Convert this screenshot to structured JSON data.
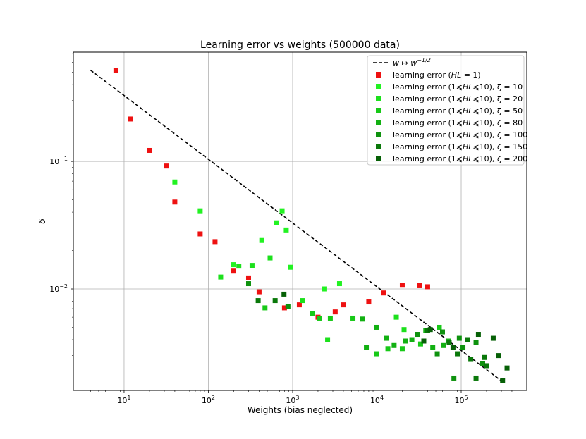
{
  "chart_data": {
    "type": "scatter",
    "title": "Learning error vs weights (500000 data)",
    "xlabel": "Weights (bias neglected)",
    "ylabel": "δ",
    "xscale": "log",
    "yscale": "log",
    "xlim": [
      2.5,
      600000
    ],
    "ylim": [
      0.0016,
      0.72
    ],
    "grid": true,
    "legend_position": "top-right",
    "x_ticks": [
      {
        "value": 10,
        "base": "10",
        "exp": "1"
      },
      {
        "value": 100,
        "base": "10",
        "exp": "2"
      },
      {
        "value": 1000,
        "base": "10",
        "exp": "3"
      },
      {
        "value": 10000,
        "base": "10",
        "exp": "4"
      },
      {
        "value": 100000,
        "base": "10",
        "exp": "5"
      }
    ],
    "y_ticks": [
      {
        "value": 0.01,
        "base": "10",
        "exp": "−2"
      },
      {
        "value": 0.1,
        "base": "10",
        "exp": "−1"
      }
    ],
    "reference_line": {
      "label_pre": "w ↦ w",
      "label_exp": "−1/2",
      "x": [
        4,
        320000
      ],
      "y": [
        0.52,
        0.00184
      ],
      "color": "#000000"
    },
    "series": [
      {
        "name_pre": "learning error (",
        "name_var": "HL",
        "name_post": " = 1)",
        "color": "#ee1111",
        "points": [
          [
            8,
            0.52
          ],
          [
            12,
            0.215
          ],
          [
            20,
            0.122
          ],
          [
            32,
            0.092
          ],
          [
            40,
            0.048
          ],
          [
            80,
            0.027
          ],
          [
            120,
            0.0235
          ],
          [
            200,
            0.0138
          ],
          [
            300,
            0.0122
          ],
          [
            400,
            0.0095
          ],
          [
            800,
            0.0071
          ],
          [
            1200,
            0.0075
          ],
          [
            2000,
            0.006
          ],
          [
            3200,
            0.0066
          ],
          [
            4000,
            0.0075
          ],
          [
            8000,
            0.0079
          ],
          [
            12000,
            0.0093
          ],
          [
            20000,
            0.0107
          ],
          [
            32000,
            0.0106
          ],
          [
            40000,
            0.0104
          ]
        ]
      },
      {
        "name_pre": "learning error (1⩽",
        "name_var": "HL",
        "name_post": "⩽10), ζ = 10",
        "color": "#22f222",
        "points": [
          [
            40,
            0.069
          ],
          [
            80,
            0.041
          ],
          [
            200,
            0.0155
          ],
          [
            430,
            0.024
          ],
          [
            640,
            0.033
          ],
          [
            750,
            0.041
          ],
          [
            840,
            0.029
          ],
          [
            940,
            0.0148
          ],
          [
            2400,
            0.01
          ],
          [
            3600,
            0.011
          ]
        ]
      },
      {
        "name_pre": "learning error (1⩽",
        "name_var": "HL",
        "name_post": "⩽10), ζ = 20",
        "color": "#1ce01c",
        "points": [
          [
            140,
            0.0124
          ],
          [
            230,
            0.0151
          ],
          [
            330,
            0.0153
          ],
          [
            540,
            0.0175
          ],
          [
            1300,
            0.0081
          ],
          [
            2600,
            0.004
          ],
          [
            17000,
            0.006
          ],
          [
            21000,
            0.0048
          ]
        ]
      },
      {
        "name_pre": "learning error (1⩽",
        "name_var": "HL",
        "name_post": "⩽10), ζ = 50",
        "color": "#17c917",
        "points": [
          [
            470,
            0.0071
          ],
          [
            1700,
            0.0064
          ],
          [
            2100,
            0.0059
          ],
          [
            2800,
            0.0059
          ],
          [
            5200,
            0.0059
          ],
          [
            10000,
            0.0031
          ],
          [
            13500,
            0.0034
          ],
          [
            20000,
            0.0034
          ],
          [
            33000,
            0.0037
          ],
          [
            55000,
            0.005
          ]
        ]
      },
      {
        "name_pre": "learning error (1⩽",
        "name_var": "HL",
        "name_post": "⩽10), ζ = 80",
        "color": "#12b012",
        "points": [
          [
            6800,
            0.0058
          ],
          [
            7500,
            0.0035
          ],
          [
            10000,
            0.005
          ],
          [
            13000,
            0.0041
          ],
          [
            16000,
            0.0036
          ],
          [
            22000,
            0.0039
          ],
          [
            26000,
            0.004
          ],
          [
            38000,
            0.0047
          ],
          [
            46000,
            0.0035
          ],
          [
            62000,
            0.0036
          ],
          [
            70000,
            0.0039
          ]
        ]
      },
      {
        "name_pre": "learning error (1⩽",
        "name_var": "HL",
        "name_post": "⩽10), ζ = 100",
        "color": "#0e920e",
        "points": [
          [
            300,
            0.011
          ],
          [
            880,
            0.0073
          ],
          [
            30000,
            0.0044
          ],
          [
            52000,
            0.0031
          ],
          [
            60000,
            0.0046
          ],
          [
            82000,
            0.002
          ],
          [
            95000,
            0.0041
          ],
          [
            105000,
            0.0035
          ],
          [
            150000,
            0.0038
          ],
          [
            180000,
            0.0026
          ]
        ]
      },
      {
        "name_pre": "learning error (1⩽",
        "name_var": "HL",
        "name_post": "⩽10), ζ = 150",
        "color": "#0a780a",
        "points": [
          [
            390,
            0.0081
          ],
          [
            620,
            0.0081
          ],
          [
            40000,
            0.0047
          ],
          [
            72000,
            0.0038
          ],
          [
            90000,
            0.0031
          ],
          [
            120000,
            0.004
          ],
          [
            130000,
            0.0028
          ],
          [
            150000,
            0.002
          ],
          [
            190000,
            0.0029
          ],
          [
            200000,
            0.0025
          ]
        ]
      },
      {
        "name_pre": "learning error (1⩽",
        "name_var": "HL",
        "name_post": "⩽10), ζ = 200",
        "color": "#066006",
        "points": [
          [
            790,
            0.0091
          ],
          [
            36000,
            0.0039
          ],
          [
            43000,
            0.0048
          ],
          [
            80000,
            0.0035
          ],
          [
            160000,
            0.0044
          ],
          [
            240000,
            0.0041
          ],
          [
            280000,
            0.003
          ],
          [
            310000,
            0.0019
          ],
          [
            350000,
            0.0024
          ]
        ]
      }
    ]
  }
}
